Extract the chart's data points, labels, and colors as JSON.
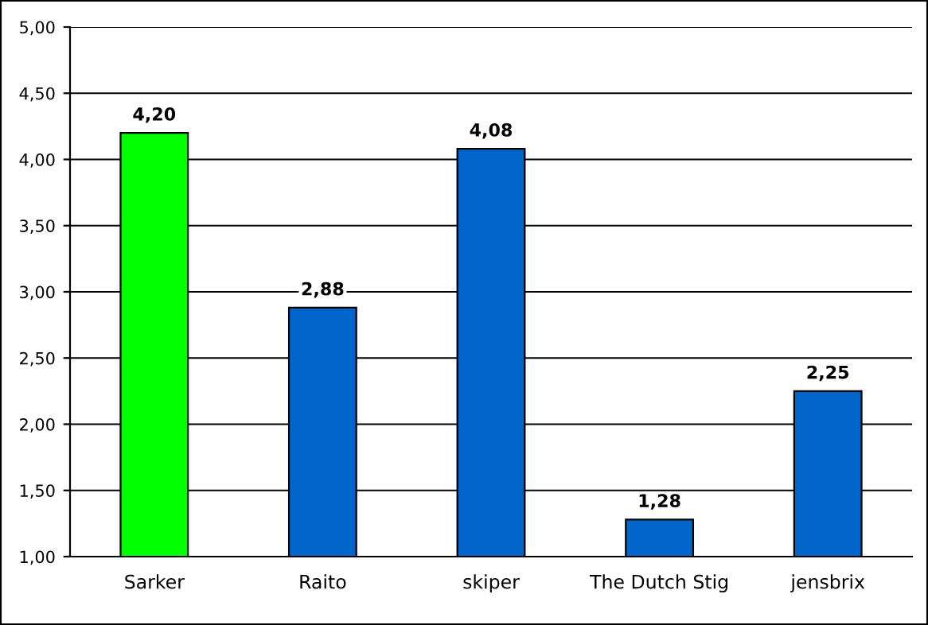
{
  "chart_data": {
    "type": "bar",
    "categories": [
      "Sarker",
      "Raito",
      "skiper",
      "The Dutch Stig",
      "jensbrix"
    ],
    "values": [
      4.2,
      2.88,
      4.08,
      1.28,
      2.25
    ],
    "colors": [
      "#00ff00",
      "#0066cc",
      "#0066cc",
      "#0066cc",
      "#0066cc"
    ],
    "value_labels": [
      "4,20",
      "2,88",
      "4,08",
      "1,28",
      "2,25"
    ],
    "ylim": [
      1,
      5
    ],
    "yticks": [
      {
        "value": 1,
        "label": "1,00"
      },
      {
        "value": 1.5,
        "label": "1,50"
      },
      {
        "value": 2,
        "label": "2,00"
      },
      {
        "value": 2.5,
        "label": "2,50"
      },
      {
        "value": 3,
        "label": "3,00"
      },
      {
        "value": 3.5,
        "label": "3,50"
      },
      {
        "value": 4,
        "label": "4,00"
      },
      {
        "value": 4.5,
        "label": "4,50"
      },
      {
        "value": 5,
        "label": "5,00"
      }
    ],
    "grid": "y",
    "legend": false
  }
}
